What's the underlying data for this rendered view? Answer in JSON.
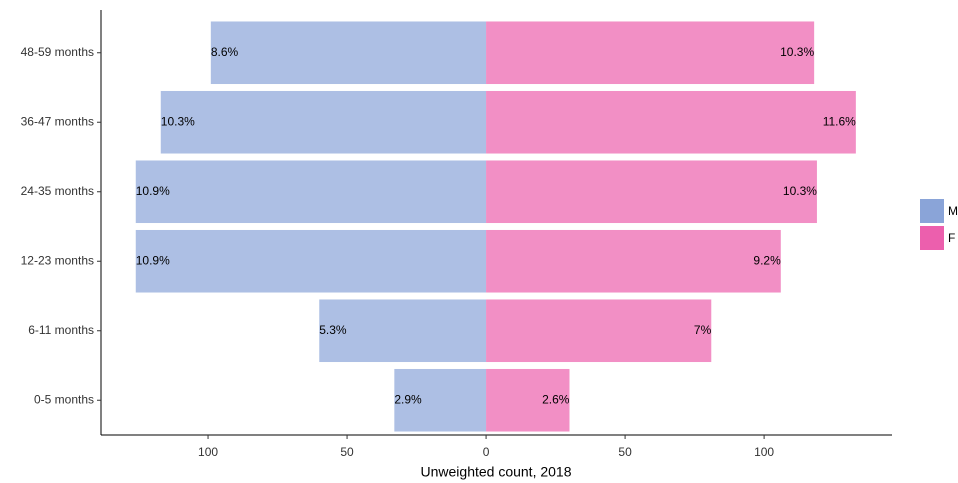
{
  "chart_data": {
    "type": "pyramid",
    "x_label": "Unweighted count, 2018",
    "categories": [
      "0-5 months",
      "6-11 months",
      "12-23 months",
      "24-35 months",
      "36-47 months",
      "48-59 months"
    ],
    "series": [
      {
        "name": "M",
        "color": "#8aa4d8",
        "values": [
          -33,
          -60,
          -126,
          -126,
          -117,
          -99
        ],
        "labels": [
          "2.9%",
          "5.3%",
          "10.9%",
          "10.9%",
          "10.3%",
          "8.6%"
        ]
      },
      {
        "name": "F",
        "color": "#ec5fad",
        "values": [
          30,
          81,
          106,
          119,
          133,
          118
        ],
        "labels": [
          "2.6%",
          "7%",
          "9.2%",
          "10.3%",
          "11.6%",
          "10.3%"
        ]
      }
    ],
    "xlim": [
      -138.5,
      146
    ],
    "xticks": [
      {
        "value": -100,
        "label": "100"
      },
      {
        "value": -50,
        "label": "50"
      },
      0,
      50,
      {
        "value": 100,
        "label": "100"
      }
    ]
  }
}
